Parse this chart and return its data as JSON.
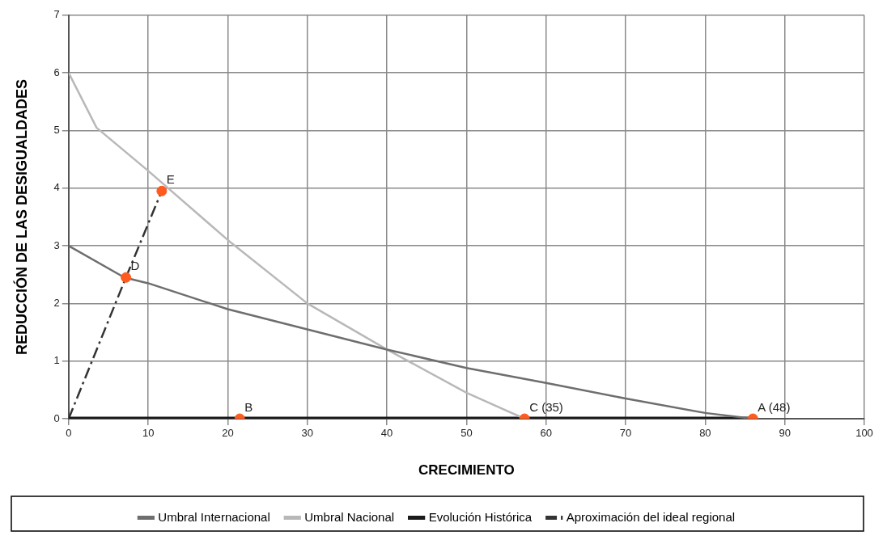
{
  "chart_data": {
    "type": "line",
    "xlabel": "CRECIMIENTO",
    "ylabel": "REDUCCIÓN DE LAS DESIGUALDADES",
    "xlim": [
      0,
      100
    ],
    "xticks": [
      0,
      10,
      20,
      30,
      40,
      50,
      60,
      70,
      80,
      90,
      100
    ],
    "ylim": [
      0,
      7
    ],
    "yticks": [
      0,
      1,
      2,
      3,
      4,
      5,
      6,
      7
    ],
    "grid": true,
    "legend": "bottom",
    "marker": "none",
    "series": [
      {
        "name": "Umbral Internacional",
        "color": "#6e6e6e",
        "x": [
          0,
          7,
          10,
          20,
          30,
          40,
          50,
          60,
          70,
          80,
          86
        ],
        "values": [
          3,
          2.45,
          2.35,
          1.9,
          1.55,
          1.2,
          0.88,
          0.62,
          0.35,
          0.1,
          0
        ]
      },
      {
        "name": "Umbral Nacional",
        "color": "#b8b8b8",
        "x": [
          0,
          3.5,
          10,
          20,
          30,
          40,
          50,
          57.3
        ],
        "values": [
          6,
          5.05,
          4.3,
          3.1,
          2,
          1.2,
          0.45,
          0
        ]
      },
      {
        "name": "Evolución Histórica",
        "color": "#1a1a1a",
        "x": [
          0,
          86
        ],
        "values": [
          0,
          0
        ]
      },
      {
        "name": "Aproximación del ideal regional",
        "color": "#333333",
        "line_style": "dashed",
        "x": [
          0,
          7.2,
          11.7
        ],
        "values": [
          0,
          2.45,
          3.95
        ]
      },
      {
        "color": "#ff5a1f",
        "type": "scatter",
        "marker": "circle",
        "x": [
          86,
          21.5,
          57.3,
          7.2,
          11.7
        ],
        "values": [
          0,
          0,
          0,
          2.45,
          3.95
        ]
      }
    ],
    "annotations": [
      {
        "text": "A (48)",
        "x": 86,
        "y": 0
      },
      {
        "text": "B",
        "x": 21.5,
        "y": 0
      },
      {
        "text": "C (35)",
        "x": 57.3,
        "y": 0
      },
      {
        "text": "D",
        "x": 7.2,
        "y": 2.45
      },
      {
        "text": "E",
        "x": 11.7,
        "y": 3.95
      }
    ]
  }
}
